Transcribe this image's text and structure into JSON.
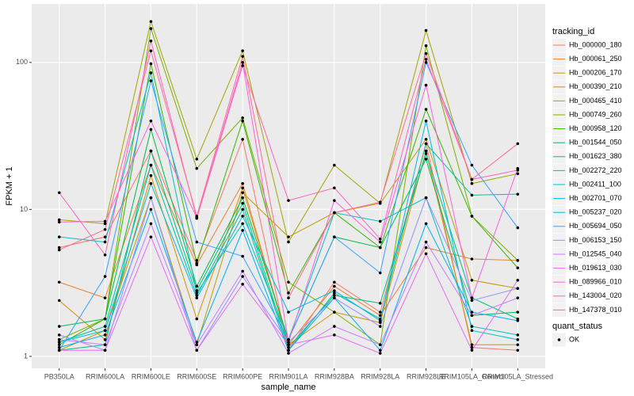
{
  "chart_data": {
    "type": "line",
    "x_label": "sample_name",
    "y_label": "FPKM + 1",
    "categories": [
      "PB350LA",
      "RRIM600LA",
      "RRIM600LE",
      "RRIM600SE",
      "RRIM600PE",
      "RRIM901LA",
      "RRIM928BA",
      "RRIM928LA",
      "RRIM928LE",
      "RRIM105LA_Control",
      "RRIM105LA_Stressed"
    ],
    "log_scale": true,
    "grid": true,
    "ylim": [
      0.83,
      250
    ],
    "yticks": [
      1,
      10,
      100
    ],
    "legend_title": "tracking_id",
    "legend_position": "right",
    "point_legend_title": "quant_status",
    "point_legend_label": "OK",
    "point_color": "#000000",
    "series": [
      {
        "name": "Hb_000000_180",
        "color": "#F8766D",
        "values": [
          5.5,
          6.5,
          25,
          4.5,
          30,
          1.1,
          3.2,
          2.0,
          28,
          1.15,
          1.1
        ]
      },
      {
        "name": "Hb_000061_250",
        "color": "#EA8331",
        "values": [
          3.2,
          2.5,
          20,
          4.2,
          15,
          1.2,
          3.0,
          1.9,
          5.5,
          4.6,
          4.5
        ]
      },
      {
        "name": "Hb_000206_170",
        "color": "#D89000",
        "values": [
          2.4,
          1.3,
          17,
          1.8,
          14,
          1.2,
          2.0,
          1.7,
          25,
          1.2,
          1.2
        ]
      },
      {
        "name": "Hb_000390_210",
        "color": "#C09B00",
        "values": [
          1.1,
          1.5,
          12,
          1.2,
          13,
          6.5,
          9.5,
          11,
          30,
          3.3,
          2.9
        ]
      },
      {
        "name": "Hb_000465_410",
        "color": "#A3A500",
        "values": [
          8.5,
          8,
          190,
          22,
          120,
          6,
          20,
          11,
          165,
          15,
          17.5
        ]
      },
      {
        "name": "Hb_000749_260",
        "color": "#7CAE00",
        "values": [
          1.3,
          1.8,
          170,
          19,
          42,
          3.2,
          2.0,
          1.2,
          130,
          9,
          4.5
        ]
      },
      {
        "name": "Hb_000958_120",
        "color": "#39B600",
        "values": [
          1.2,
          1.8,
          98,
          4.3,
          40,
          2.7,
          9.5,
          5.5,
          48,
          9,
          4.0
        ]
      },
      {
        "name": "Hb_001544_050",
        "color": "#00BB4E",
        "values": [
          1.6,
          1.8,
          35,
          3.0,
          12,
          1.3,
          6.5,
          5.5,
          22,
          1.9,
          2.0
        ]
      },
      {
        "name": "Hb_001623_380",
        "color": "#00BF7D",
        "values": [
          1.1,
          1.2,
          25,
          2.8,
          11,
          1.15,
          2.6,
          2.3,
          24,
          2.5,
          1.8
        ]
      },
      {
        "name": "Hb_002272_220",
        "color": "#00C1A3",
        "values": [
          1.25,
          1.6,
          20,
          2.6,
          10,
          1.1,
          2.7,
          1.8,
          28,
          12.5,
          12.7
        ]
      },
      {
        "name": "Hb_002411_100",
        "color": "#00BFC4",
        "values": [
          6.5,
          6.0,
          85,
          2.7,
          8,
          1.3,
          9.5,
          8.3,
          12,
          1.6,
          1.4
        ]
      },
      {
        "name": "Hb_002701_070",
        "color": "#00BAE0",
        "values": [
          1.25,
          1.5,
          15,
          2.5,
          9,
          2.0,
          2.8,
          1.75,
          40,
          1.5,
          1.3
        ]
      },
      {
        "name": "Hb_005237_020",
        "color": "#00B0F6",
        "values": [
          1.15,
          1.4,
          10,
          1.25,
          7.2,
          1.1,
          2.5,
          1.1,
          8,
          2.0,
          1.75
        ]
      },
      {
        "name": "Hb_005694_050",
        "color": "#35A2FF",
        "values": [
          1.1,
          3.5,
          75,
          6.0,
          4.8,
          1.3,
          6.5,
          3.7,
          100,
          20,
          7.5
        ]
      },
      {
        "name": "Hb_006153_150",
        "color": "#9590FF",
        "values": [
          1.4,
          1.1,
          12,
          1.1,
          3.5,
          1.25,
          2.5,
          1.6,
          12,
          2.4,
          2.9
        ]
      },
      {
        "name": "Hb_012545_040",
        "color": "#C77CFF",
        "values": [
          1.3,
          1.2,
          8,
          1.2,
          3.8,
          1.05,
          1.6,
          1.2,
          6,
          1.9,
          2.5
        ]
      },
      {
        "name": "Hb_019613_030",
        "color": "#E76BF3",
        "values": [
          1.1,
          1.1,
          6.5,
          1.1,
          3.1,
          1.2,
          1.4,
          1.05,
          5,
          1.1,
          3.3
        ]
      },
      {
        "name": "Hb_089966_010",
        "color": "#FA62DB",
        "values": [
          8.2,
          8.3,
          40,
          8.8,
          100,
          1.25,
          11.5,
          6,
          70,
          2.5,
          19
        ]
      },
      {
        "name": "Hb_143004_020",
        "color": "#FF62BC",
        "values": [
          13,
          4.9,
          140,
          8.7,
          95,
          11.5,
          14,
          6.3,
          105,
          16,
          18.5
        ]
      },
      {
        "name": "Hb_147378_010",
        "color": "#FF6C91",
        "values": [
          5.3,
          7.3,
          120,
          9,
          110,
          2.5,
          9.5,
          11.2,
          115,
          16,
          28
        ]
      }
    ]
  }
}
